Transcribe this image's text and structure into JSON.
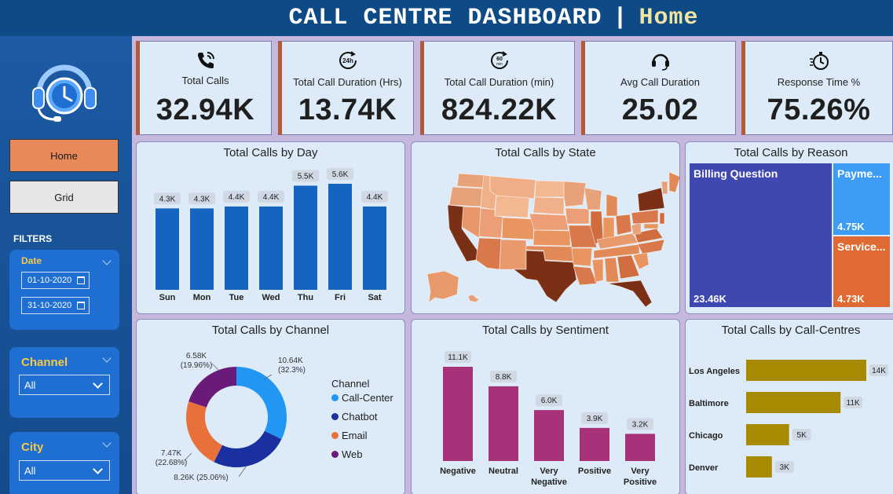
{
  "header": {
    "title": "CALL CENTRE DASHBOARD",
    "separator": "|",
    "page": "Home"
  },
  "nav": {
    "home_label": "Home",
    "grid_label": "Grid"
  },
  "filters": {
    "label": "FILTERS",
    "date": {
      "title": "Date",
      "start": "01-10-2020",
      "end": "31-10-2020"
    },
    "channel": {
      "title": "Channel",
      "value": "All"
    },
    "city": {
      "title": "City",
      "value": "All"
    }
  },
  "kpis": [
    {
      "label": "Total Calls",
      "value": "32.94K",
      "icon": "phone-ringing-icon"
    },
    {
      "label": "Total Call Duration (Hrs)",
      "value": "13.74K",
      "icon": "24h-clock-icon"
    },
    {
      "label": "Total Call Duration (min)",
      "value": "824.22K",
      "icon": "60-min-clock-icon"
    },
    {
      "label": "Avg Call Duration",
      "value": "25.02",
      "icon": "headset-icon"
    },
    {
      "label": "Response Time %",
      "value": "75.26%",
      "icon": "stopwatch-icon"
    }
  ],
  "colors": {
    "day_bar": "#1565c0",
    "sentiment_bar": "#a83279",
    "centre_bar": "#a88a00",
    "kpi_accent": "#b2593a",
    "map_high": "#7b3016",
    "map_low": "#f1b08a"
  },
  "charts": {
    "by_day": {
      "title": "Total Calls by Day"
    },
    "by_state": {
      "title": "Total Calls by State"
    },
    "by_reason": {
      "title": "Total Calls by Reason",
      "items": [
        {
          "name": "Billing Question",
          "value": "23.46K"
        },
        {
          "name": "Payme...",
          "value": "4.75K"
        },
        {
          "name": "Service...",
          "value": "4.73K"
        }
      ]
    },
    "by_channel": {
      "title": "Total Calls by Channel",
      "legend_title": "Channel"
    },
    "by_sentiment": {
      "title": "Total Calls by Sentiment"
    },
    "by_centre": {
      "title": "Total Calls by Call-Centres"
    }
  },
  "chart_data": [
    {
      "type": "bar",
      "title": "Total Calls by Day",
      "categories": [
        "Sun",
        "Mon",
        "Tue",
        "Wed",
        "Thu",
        "Fri",
        "Sat"
      ],
      "values": [
        4300,
        4300,
        4400,
        4400,
        5500,
        5600,
        4400
      ],
      "data_labels": [
        "4.3K",
        "4.3K",
        "4.4K",
        "4.4K",
        "5.5K",
        "5.6K",
        "4.4K"
      ]
    },
    {
      "type": "pie",
      "title": "Total Calls by Channel",
      "categories": [
        "Call-Center",
        "Chatbot",
        "Email",
        "Web"
      ],
      "values": [
        10640,
        8260,
        7470,
        6580
      ],
      "percents": [
        32.3,
        25.06,
        22.68,
        19.96
      ],
      "labels": [
        [
          "10.64K",
          "(32.3%)"
        ],
        [
          "8.26K (25.06%)"
        ],
        [
          "7.47K",
          "(22.68%)"
        ],
        [
          "6.58K",
          "(19.96%)"
        ]
      ],
      "colors": [
        "#2196f3",
        "#1a2fa0",
        "#e8703a",
        "#6a1b7a"
      ]
    },
    {
      "type": "bar",
      "title": "Total Calls by Sentiment",
      "categories": [
        [
          "Negative"
        ],
        [
          "Neutral"
        ],
        [
          "Very",
          "Negative"
        ],
        [
          "Positive"
        ],
        [
          "Very",
          "Positive"
        ]
      ],
      "values": [
        11100,
        8800,
        6000,
        3900,
        3200
      ],
      "data_labels": [
        "11.1K",
        "8.8K",
        "6.0K",
        "3.9K",
        "3.2K"
      ]
    },
    {
      "type": "bar",
      "orientation": "horizontal",
      "title": "Total Calls by Call-Centres",
      "categories": [
        "Los Angeles",
        "Baltimore",
        "Chicago",
        "Denver"
      ],
      "values": [
        14000,
        11000,
        5000,
        3000
      ],
      "data_labels": [
        "14K",
        "11K",
        "5K",
        "3K"
      ]
    }
  ]
}
